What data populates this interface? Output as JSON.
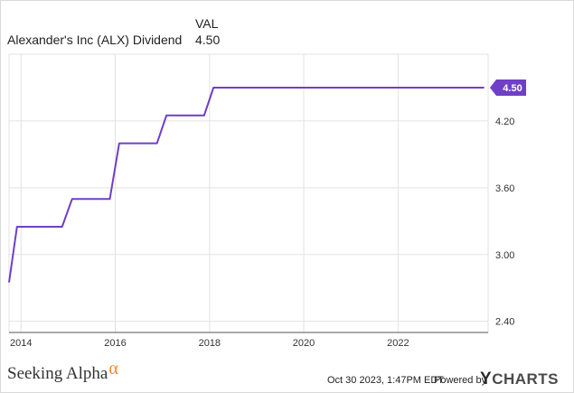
{
  "legend": {
    "column_header": "VAL",
    "series_label": "Alexander's Inc (ALX) Dividend",
    "series_value": "4.50"
  },
  "colors": {
    "series": "#6f3fc8",
    "grid": "#e2e2e2",
    "axis_text": "#333333",
    "brand_alpha": "#f08a24"
  },
  "chart_data": {
    "type": "line",
    "x_type": "date",
    "series": [
      {
        "name": "Alexander's Inc (ALX) Dividend",
        "points": [
          [
            "2013-09-30",
            2.75
          ],
          [
            "2013-12-01",
            3.25
          ],
          [
            "2014-11-15",
            3.25
          ],
          [
            "2015-02-01",
            3.5
          ],
          [
            "2015-11-20",
            3.5
          ],
          [
            "2016-02-01",
            4.0
          ],
          [
            "2016-11-20",
            4.0
          ],
          [
            "2017-02-01",
            4.25
          ],
          [
            "2017-11-20",
            4.25
          ],
          [
            "2018-02-01",
            4.5
          ],
          [
            "2023-10-30",
            4.5
          ]
        ]
      }
    ],
    "xlim": [
      "2013-09-30",
      "2023-11-30"
    ],
    "ylim": [
      2.3,
      4.8
    ],
    "x_ticks": [
      "2014",
      "2016",
      "2018",
      "2020",
      "2022"
    ],
    "y_ticks": [
      "2.40",
      "3.00",
      "3.60",
      "4.20"
    ],
    "last_value_label": "4.50",
    "grid": true,
    "y_axis_side": "right"
  },
  "footer": {
    "brand": "Seeking Alpha",
    "brand_symbol": "α",
    "timestamp": "Oct 30 2023, 1:47PM EDT.",
    "powered_by": "Powered by",
    "provider_y": "Y",
    "provider_rest": "CHARTS"
  }
}
